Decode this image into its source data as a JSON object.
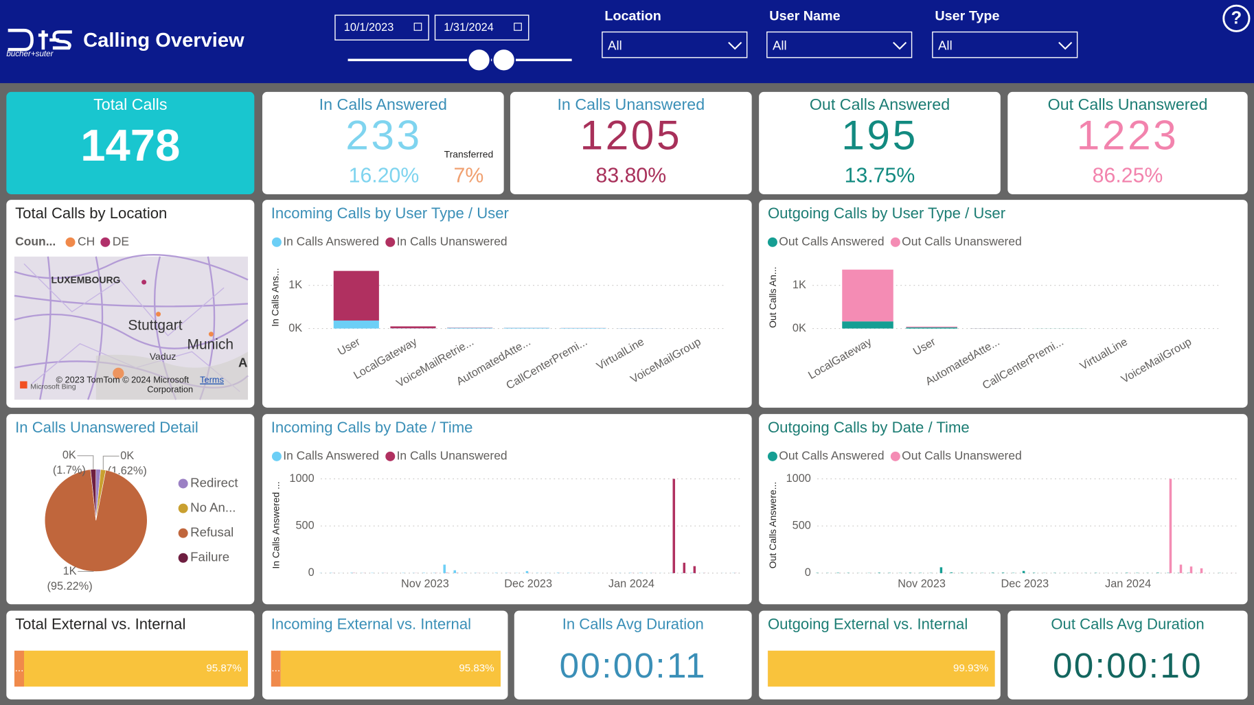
{
  "header": {
    "logo": "bucher+suter",
    "title": "Calling Overview",
    "help": "?"
  },
  "filters": {
    "start_date": "10/1/2023",
    "end_date": "1/31/2024",
    "slicers": [
      {
        "label": "Location",
        "value": "All"
      },
      {
        "label": "User Name",
        "value": "All"
      },
      {
        "label": "User Type",
        "value": "All"
      }
    ]
  },
  "kpis": [
    {
      "title": "Total Calls",
      "value": "1478"
    },
    {
      "title": "In Calls Answered",
      "value": "233",
      "percent": "16.20%",
      "transferred_label": "Transferred",
      "transferred_value": "7%"
    },
    {
      "title": "In Calls Unanswered",
      "value": "1205",
      "percent": "83.80%"
    },
    {
      "title": "Out Calls Answered",
      "value": "195",
      "percent": "13.75%"
    },
    {
      "title": "Out Calls Unanswered",
      "value": "1223",
      "percent": "86.25%"
    }
  ],
  "map": {
    "title": "Total Calls by Location",
    "legend_title": "Coun...",
    "legend": [
      {
        "name": "CH",
        "color": "#f0894a"
      },
      {
        "name": "DE",
        "color": "#b0306a"
      }
    ],
    "labels": [
      "LUXEMBOURG",
      "Stuttgart",
      "Munich",
      "Vaduz",
      "A"
    ],
    "attribution": [
      "© 2023 TomTom © 2024 Microsoft",
      "Corporation"
    ],
    "terms": "Terms",
    "provider": "Microsoft Bing"
  },
  "chart_data": [
    {
      "type": "stacked_bar",
      "title": "Incoming Calls by User Type / User",
      "y_label": "In Calls Ans...",
      "categories": [
        "User",
        "LocalGateway",
        "VoiceMailRetrie...",
        "AutomatedAtte...",
        "CallCenterPremi...",
        "VirtualLine",
        "VoiceMailGroup"
      ],
      "series": [
        {
          "name": "In Calls Answered",
          "color": "#6ccff6",
          "values": [
            185,
            5,
            15,
            15,
            10,
            3,
            0
          ]
        },
        {
          "name": "In Calls Unanswered",
          "color": "#b03060",
          "values": [
            1150,
            45,
            5,
            2,
            2,
            1,
            0
          ]
        }
      ],
      "ylim": [
        0,
        1500
      ],
      "yticks": [
        {
          "value": 0,
          "label": "0K"
        },
        {
          "value": 1000,
          "label": "1K"
        }
      ],
      "grid": true
    },
    {
      "type": "stacked_bar",
      "title": "Outgoing Calls by User Type / User",
      "y_label": "Out Calls An...",
      "categories": [
        "LocalGateway",
        "User",
        "AutomatedAtte...",
        "CallCenterPremi...",
        "VirtualLine",
        "VoiceMailGroup"
      ],
      "series": [
        {
          "name": "Out Calls Answered",
          "color": "#159e93",
          "values": [
            165,
            25,
            3,
            2,
            0,
            0
          ]
        },
        {
          "name": "Out Calls Unanswered",
          "color": "#f48cb4",
          "values": [
            1200,
            20,
            3,
            0,
            0,
            0
          ]
        }
      ],
      "ylim": [
        0,
        1500
      ],
      "yticks": [
        {
          "value": 0,
          "label": "0K"
        },
        {
          "value": 1000,
          "label": "1K"
        }
      ],
      "grid": true
    },
    {
      "type": "pie",
      "title": "In Calls Unanswered Detail",
      "slices": [
        {
          "name": "Redirect",
          "color": "#9b80c4",
          "value": 1.46
        },
        {
          "name": "No An...",
          "color": "#c9a030",
          "value": 1.62,
          "label": "0K",
          "percent_label": "(1.62%)"
        },
        {
          "name": "Refusal",
          "color": "#c0663c",
          "value": 95.22,
          "label": "1K",
          "percent_label": "(95.22%)"
        },
        {
          "name": "Failure",
          "color": "#6e1e40",
          "value": 1.7,
          "label": "0K",
          "percent_label": "(1.7%)"
        }
      ]
    },
    {
      "type": "bar",
      "title": "Incoming Calls by Date / Time",
      "y_label": "In Calls Answered ...",
      "categories": [
        null,
        null,
        null,
        null,
        null,
        null,
        null,
        null,
        null,
        null,
        "Nov 2023",
        null,
        null,
        null,
        null,
        null,
        null,
        null,
        null,
        null,
        "Dec 2023",
        null,
        null,
        null,
        null,
        null,
        null,
        null,
        null,
        null,
        "Jan 2024",
        null,
        null,
        null,
        null,
        null,
        null,
        null,
        null,
        null,
        null
      ],
      "series": [
        {
          "name": "In Calls Answered",
          "color": "#6ccff6",
          "values": [
            2,
            3,
            1,
            4,
            2,
            3,
            2,
            1,
            3,
            2,
            4,
            3,
            90,
            30,
            5,
            3,
            2,
            4,
            3,
            2,
            22,
            3,
            2,
            5,
            3,
            1,
            2,
            1,
            0,
            2,
            3,
            4,
            2,
            1,
            3,
            2,
            4,
            1,
            0,
            1,
            2
          ]
        },
        {
          "name": "In Calls Unanswered",
          "color": "#b03060",
          "values": [
            0,
            1,
            0,
            2,
            1,
            0,
            1,
            0,
            0,
            1,
            0,
            1,
            3,
            2,
            0,
            1,
            0,
            0,
            1,
            0,
            1,
            0,
            0,
            1,
            0,
            0,
            1,
            0,
            0,
            0,
            1,
            0,
            1,
            0,
            1000,
            110,
            74,
            1,
            0,
            0,
            1
          ]
        }
      ],
      "ylim": [
        0,
        1060
      ],
      "yticks": [
        0,
        500,
        1000
      ],
      "grid": true
    },
    {
      "type": "bar",
      "title": "Outgoing Calls by Date / Time",
      "y_label": "Out Calls Answere...",
      "categories": [
        null,
        null,
        null,
        null,
        null,
        null,
        null,
        null,
        null,
        null,
        "Nov 2023",
        null,
        null,
        null,
        null,
        null,
        null,
        null,
        null,
        null,
        "Dec 2023",
        null,
        null,
        null,
        null,
        null,
        null,
        null,
        null,
        null,
        "Jan 2024",
        null,
        null,
        null,
        null,
        null,
        null,
        null,
        null,
        null,
        null
      ],
      "series": [
        {
          "name": "Out Calls Answered",
          "color": "#159e93",
          "values": [
            3,
            2,
            4,
            3,
            1,
            2,
            5,
            3,
            2,
            4,
            3,
            2,
            62,
            8,
            4,
            3,
            2,
            5,
            6,
            3,
            23,
            4,
            2,
            3,
            2,
            1,
            2,
            3,
            1,
            2,
            4,
            3,
            2,
            5,
            3,
            2,
            3,
            1,
            0,
            2,
            0
          ]
        },
        {
          "name": "Out Calls Unanswered",
          "color": "#f48cb4",
          "values": [
            0,
            0,
            1,
            0,
            0,
            1,
            0,
            0,
            0,
            1,
            0,
            0,
            2,
            1,
            0,
            0,
            1,
            0,
            0,
            0,
            1,
            0,
            0,
            0,
            0,
            1,
            0,
            0,
            0,
            0,
            2,
            0,
            0,
            0,
            1000,
            90,
            70,
            51,
            0,
            0,
            1
          ]
        }
      ],
      "ylim": [
        0,
        1060
      ],
      "yticks": [
        0,
        500,
        1000
      ],
      "grid": true
    },
    {
      "type": "stacked_hbar",
      "title": "Total External vs. Internal",
      "xlim": [
        0,
        100
      ],
      "values": [
        4.13,
        95.87
      ],
      "value_labels": [
        "...",
        "95.87%"
      ],
      "colors": [
        "#f08a4b",
        "#f9c33c"
      ]
    },
    {
      "type": "stacked_hbar",
      "title": "Incoming External vs. Internal",
      "xlim": [
        0,
        100
      ],
      "values": [
        4.17,
        95.83
      ],
      "value_labels": [
        "...",
        "95.83%"
      ],
      "colors": [
        "#f08a4b",
        "#f9c33c"
      ]
    },
    {
      "type": "stacked_hbar",
      "title": "Outgoing External vs. Internal",
      "xlim": [
        0,
        100
      ],
      "values": [
        0.07,
        99.93
      ],
      "value_labels": [
        null,
        "99.93%"
      ],
      "colors": [
        "#f08a4b",
        "#f9c33c"
      ]
    }
  ],
  "durations": [
    {
      "title": "In Calls Avg Duration",
      "value": "00:00:11"
    },
    {
      "title": "Out Calls Avg Duration",
      "value": "00:00:10"
    }
  ]
}
